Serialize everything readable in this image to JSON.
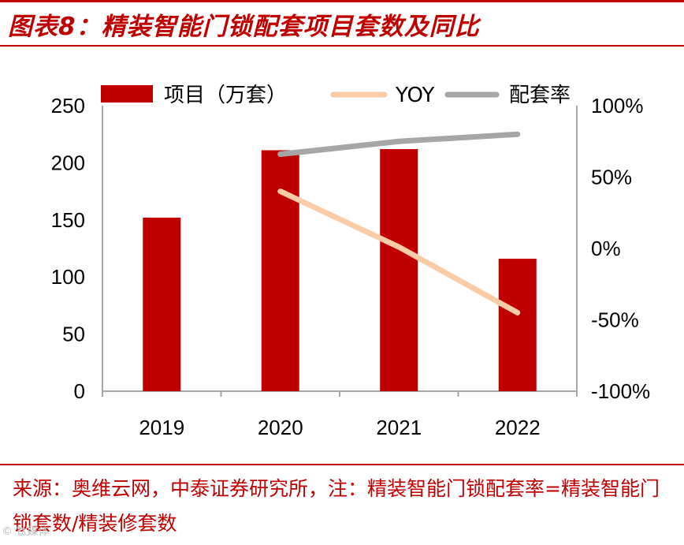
{
  "header": {
    "title": "图表8：精装智能门锁配套项目套数及同比"
  },
  "footer": {
    "source": "来源：奥维云网，中泰证券研究所，注：精装智能门锁配套率=精装智能门锁套数/精装修套数",
    "watermark": "© 钛媒体"
  },
  "colors": {
    "accent": "#c00000",
    "bar": "#c00000",
    "yoy": "#f9cba6",
    "rate": "#a6a6a6",
    "axis": "#a6a6a6"
  },
  "chart_data": {
    "type": "bar",
    "categories": [
      "2019",
      "2020",
      "2021",
      "2022"
    ],
    "series": [
      {
        "name": "项目（万套）",
        "kind": "bar",
        "axis": "left",
        "values": [
          152,
          211,
          212,
          116
        ]
      },
      {
        "name": "YOY",
        "kind": "line",
        "axis": "right",
        "values": [
          null,
          40,
          1,
          -45
        ]
      },
      {
        "name": "配套率",
        "kind": "line",
        "axis": "right",
        "values": [
          null,
          66,
          75,
          80
        ]
      }
    ],
    "left_axis": {
      "range": [
        0,
        250
      ],
      "ticks": [
        "0",
        "50",
        "100",
        "150",
        "200",
        "250"
      ]
    },
    "right_axis": {
      "range": [
        -100,
        100
      ],
      "ticks": [
        "-100%",
        "-50%",
        "0%",
        "50%",
        "100%"
      ]
    },
    "legend": {
      "position": "top",
      "items": [
        "项目（万套）",
        "YOY",
        "配套率"
      ]
    }
  }
}
